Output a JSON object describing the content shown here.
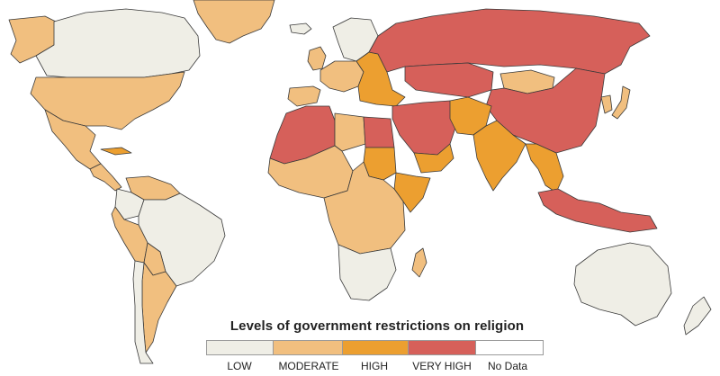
{
  "legend": {
    "title": "Levels of government restrictions on religion",
    "categories": [
      {
        "key": "low",
        "label": "LOW",
        "color": "#efeee6"
      },
      {
        "key": "moderate",
        "label": "MODERATE",
        "color": "#f1bf7f"
      },
      {
        "key": "high",
        "label": "HIGH",
        "color": "#ec9f30"
      },
      {
        "key": "very_high",
        "label": "VERY HIGH",
        "color": "#d6605a"
      },
      {
        "key": "no_data",
        "label": "No Data",
        "color": "#ffffff"
      }
    ]
  },
  "regions": [
    {
      "name": "greenland",
      "level": "moderate"
    },
    {
      "name": "canada",
      "level": "low"
    },
    {
      "name": "alaska",
      "level": "moderate"
    },
    {
      "name": "united-states",
      "level": "moderate"
    },
    {
      "name": "mexico",
      "level": "moderate"
    },
    {
      "name": "cuba",
      "level": "high"
    },
    {
      "name": "central-america",
      "level": "moderate"
    },
    {
      "name": "venezuela",
      "level": "moderate"
    },
    {
      "name": "colombia",
      "level": "low"
    },
    {
      "name": "peru",
      "level": "moderate"
    },
    {
      "name": "brazil",
      "level": "low"
    },
    {
      "name": "bolivia",
      "level": "moderate"
    },
    {
      "name": "argentina",
      "level": "moderate"
    },
    {
      "name": "chile",
      "level": "low"
    },
    {
      "name": "uk-ireland",
      "level": "moderate"
    },
    {
      "name": "scandinavia",
      "level": "low"
    },
    {
      "name": "iceland",
      "level": "low"
    },
    {
      "name": "western-europe",
      "level": "moderate"
    },
    {
      "name": "spain",
      "level": "moderate"
    },
    {
      "name": "eastern-europe",
      "level": "high"
    },
    {
      "name": "russia",
      "level": "very_high"
    },
    {
      "name": "kazakhstan-central-asia",
      "level": "very_high"
    },
    {
      "name": "mongolia",
      "level": "moderate"
    },
    {
      "name": "china",
      "level": "very_high"
    },
    {
      "name": "north-africa",
      "level": "very_high"
    },
    {
      "name": "libya",
      "level": "moderate"
    },
    {
      "name": "egypt",
      "level": "very_high"
    },
    {
      "name": "middle-east",
      "level": "very_high"
    },
    {
      "name": "yemen-oman",
      "level": "high"
    },
    {
      "name": "pakistan-afghanistan",
      "level": "high"
    },
    {
      "name": "india",
      "level": "high"
    },
    {
      "name": "southeast-asia",
      "level": "high"
    },
    {
      "name": "indonesia",
      "level": "very_high"
    },
    {
      "name": "sudan",
      "level": "high"
    },
    {
      "name": "west-africa",
      "level": "moderate"
    },
    {
      "name": "somalia-horn",
      "level": "high"
    },
    {
      "name": "central-africa",
      "level": "moderate"
    },
    {
      "name": "southern-africa",
      "level": "low"
    },
    {
      "name": "madagascar",
      "level": "moderate"
    },
    {
      "name": "australia",
      "level": "low"
    },
    {
      "name": "new-zealand",
      "level": "low"
    },
    {
      "name": "japan",
      "level": "moderate"
    },
    {
      "name": "korea",
      "level": "moderate"
    }
  ]
}
